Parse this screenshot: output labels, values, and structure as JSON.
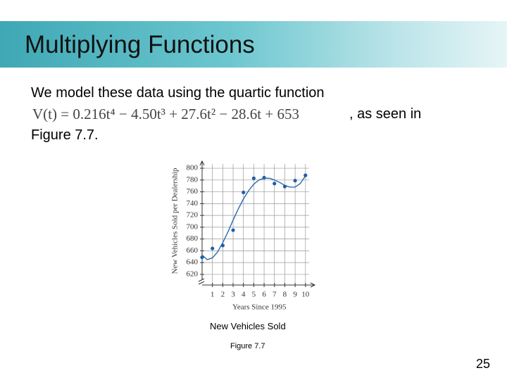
{
  "slide": {
    "title": "Multiplying Functions",
    "text_line1": "We model these data using the quartic function",
    "formula": "V(t) = 0.216t⁴ − 4.50t³ + 27.6t² − 28.6t + 653",
    "text_after_formula": ", as seen in",
    "text_line3": "Figure 7.7.",
    "caption": "New Vehicles Sold",
    "figure_label": "Figure 7.7",
    "page_number": "25"
  },
  "chart_data": {
    "type": "scatter",
    "x_label": "Years Since 1995",
    "y_label": "New Vehicles Sold per Dealership",
    "xlim": [
      0,
      10.9
    ],
    "ylim": [
      602,
      812
    ],
    "xticks": [
      1,
      2,
      3,
      4,
      5,
      6,
      7,
      8,
      9,
      10
    ],
    "yticks": [
      620,
      640,
      660,
      680,
      700,
      720,
      740,
      760,
      780,
      800
    ],
    "grid": true,
    "series": [
      {
        "type": "scatter",
        "color": "#1f5fa8",
        "x": [
          0,
          1,
          2,
          3,
          4,
          5,
          6,
          7,
          8,
          9,
          10
        ],
        "values": [
          649,
          664,
          669,
          695,
          759,
          783,
          784,
          774,
          769,
          779,
          788
        ]
      },
      {
        "type": "line",
        "color": "#1f5fa8",
        "x": [
          0,
          0.5,
          1,
          1.5,
          2,
          2.5,
          3,
          3.5,
          4,
          4.5,
          5,
          5.5,
          6,
          6.5,
          7,
          7.5,
          8,
          8.5,
          9,
          9.5,
          10
        ],
        "values": [
          653,
          645,
          648,
          658,
          674,
          692,
          712,
          731,
          748,
          762,
          773,
          780,
          783,
          783,
          780,
          776,
          771,
          768,
          768,
          774,
          787
        ]
      }
    ]
  }
}
